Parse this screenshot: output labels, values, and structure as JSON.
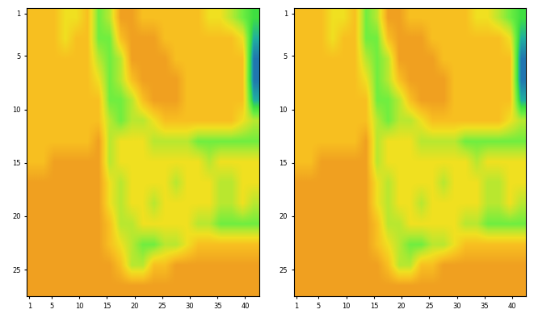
{
  "chart_data": [
    {
      "type": "heatmap",
      "xlim": [
        0.5,
        42.5
      ],
      "ylim": [
        27.5,
        0.5
      ],
      "xticks": [
        1,
        5,
        10,
        15,
        20,
        25,
        30,
        35,
        40
      ],
      "yticks": [
        1,
        5,
        10,
        15,
        20,
        25
      ],
      "clim": [
        0,
        10
      ],
      "cells": [
        [
          7,
          7,
          7,
          6,
          6,
          7,
          4,
          5,
          8,
          8,
          7,
          7,
          7,
          7,
          7,
          7,
          6,
          6,
          5,
          4,
          3
        ],
        [
          7,
          7,
          7,
          6,
          7,
          7,
          4,
          4,
          7,
          8,
          8,
          8,
          7,
          7,
          7,
          7,
          7,
          7,
          7,
          6,
          2
        ],
        [
          7,
          7,
          7,
          7,
          7,
          7,
          5,
          4,
          5,
          8,
          8,
          8,
          8,
          7,
          7,
          7,
          7,
          7,
          7,
          7,
          1
        ],
        [
          7,
          7,
          7,
          7,
          7,
          7,
          6,
          4,
          5,
          7,
          8,
          8,
          8,
          8,
          7,
          7,
          7,
          7,
          7,
          7,
          1
        ],
        [
          7,
          7,
          7,
          7,
          7,
          7,
          7,
          4,
          4,
          5,
          7,
          8,
          8,
          8,
          7,
          7,
          7,
          7,
          7,
          7,
          2
        ],
        [
          7,
          7,
          7,
          7,
          7,
          7,
          7,
          5,
          4,
          5,
          5,
          6,
          7,
          7,
          7,
          7,
          7,
          7,
          7,
          6,
          5
        ],
        [
          7,
          7,
          7,
          7,
          7,
          7,
          8,
          5,
          6,
          6,
          6,
          5,
          5,
          5,
          5,
          4,
          4,
          4,
          4,
          4,
          4
        ],
        [
          7,
          7,
          8,
          8,
          8,
          8,
          8,
          5,
          6,
          6,
          6,
          6,
          6,
          6,
          6,
          6,
          5,
          6,
          6,
          6,
          6
        ],
        [
          8,
          8,
          8,
          8,
          8,
          8,
          8,
          6,
          5,
          6,
          6,
          6,
          6,
          5,
          6,
          6,
          6,
          5,
          5,
          6,
          6
        ],
        [
          8,
          8,
          8,
          8,
          8,
          8,
          8,
          6,
          5,
          6,
          6,
          5,
          6,
          6,
          6,
          6,
          6,
          5,
          5,
          6,
          5
        ],
        [
          8,
          8,
          8,
          8,
          8,
          8,
          8,
          7,
          5,
          5,
          6,
          6,
          6,
          6,
          6,
          5,
          5,
          4,
          4,
          4,
          4
        ],
        [
          8,
          8,
          8,
          8,
          8,
          8,
          8,
          7,
          6,
          5,
          4,
          4,
          5,
          5,
          6,
          7,
          7,
          7,
          7,
          7,
          7
        ],
        [
          8,
          8,
          8,
          8,
          8,
          8,
          8,
          8,
          7,
          5,
          5,
          7,
          7,
          8,
          8,
          8,
          8,
          8,
          8,
          8,
          8
        ],
        [
          8,
          8,
          8,
          8,
          8,
          8,
          8,
          8,
          8,
          8,
          8,
          8,
          8,
          8,
          8,
          8,
          8,
          8,
          8,
          8,
          8
        ]
      ]
    },
    {
      "type": "heatmap",
      "xlim": [
        0.5,
        42.5
      ],
      "ylim": [
        27.5,
        0.5
      ],
      "xticks": [
        1,
        5,
        10,
        15,
        20,
        25,
        30,
        35,
        40
      ],
      "yticks": [
        1,
        5,
        10,
        15,
        20,
        25
      ],
      "clim": [
        0,
        10
      ],
      "cells": [
        [
          7,
          7,
          7,
          6,
          6,
          7,
          4,
          5,
          8,
          8,
          7,
          7,
          7,
          7,
          7,
          7,
          6,
          6,
          5,
          4,
          3
        ],
        [
          7,
          7,
          7,
          6,
          7,
          7,
          4,
          4,
          7,
          8,
          8,
          8,
          7,
          7,
          7,
          7,
          7,
          7,
          7,
          6,
          2
        ],
        [
          7,
          7,
          7,
          7,
          7,
          7,
          5,
          4,
          5,
          8,
          8,
          8,
          8,
          7,
          7,
          7,
          7,
          7,
          7,
          7,
          1
        ],
        [
          7,
          7,
          7,
          7,
          7,
          7,
          6,
          4,
          5,
          7,
          8,
          8,
          8,
          8,
          7,
          7,
          7,
          7,
          7,
          7,
          1
        ],
        [
          7,
          7,
          7,
          7,
          7,
          7,
          7,
          4,
          4,
          5,
          7,
          8,
          8,
          8,
          7,
          7,
          7,
          7,
          7,
          7,
          2
        ],
        [
          7,
          7,
          7,
          7,
          7,
          7,
          7,
          5,
          4,
          5,
          5,
          6,
          7,
          7,
          7,
          7,
          7,
          7,
          7,
          6,
          5
        ],
        [
          7,
          7,
          7,
          7,
          7,
          7,
          8,
          5,
          6,
          6,
          6,
          5,
          5,
          5,
          5,
          4,
          4,
          4,
          4,
          4,
          4
        ],
        [
          7,
          7,
          8,
          8,
          8,
          8,
          8,
          5,
          6,
          6,
          6,
          6,
          6,
          6,
          6,
          6,
          5,
          6,
          6,
          6,
          6
        ],
        [
          8,
          8,
          8,
          8,
          8,
          8,
          8,
          6,
          5,
          6,
          6,
          6,
          6,
          5,
          6,
          6,
          6,
          5,
          5,
          6,
          6
        ],
        [
          8,
          8,
          8,
          8,
          8,
          8,
          8,
          6,
          5,
          6,
          6,
          5,
          6,
          6,
          6,
          6,
          6,
          5,
          5,
          6,
          5
        ],
        [
          8,
          8,
          8,
          8,
          8,
          8,
          8,
          7,
          5,
          5,
          6,
          6,
          6,
          6,
          6,
          5,
          5,
          4,
          4,
          4,
          4
        ],
        [
          8,
          8,
          8,
          8,
          8,
          8,
          8,
          7,
          6,
          5,
          4,
          4,
          5,
          5,
          6,
          7,
          7,
          7,
          7,
          7,
          7
        ],
        [
          8,
          8,
          8,
          8,
          8,
          8,
          8,
          8,
          7,
          5,
          5,
          7,
          7,
          8,
          8,
          8,
          8,
          8,
          8,
          8,
          8
        ],
        [
          8,
          8,
          8,
          8,
          8,
          8,
          8,
          8,
          8,
          8,
          8,
          8,
          8,
          8,
          8,
          8,
          8,
          8,
          8,
          8,
          8
        ]
      ]
    }
  ]
}
